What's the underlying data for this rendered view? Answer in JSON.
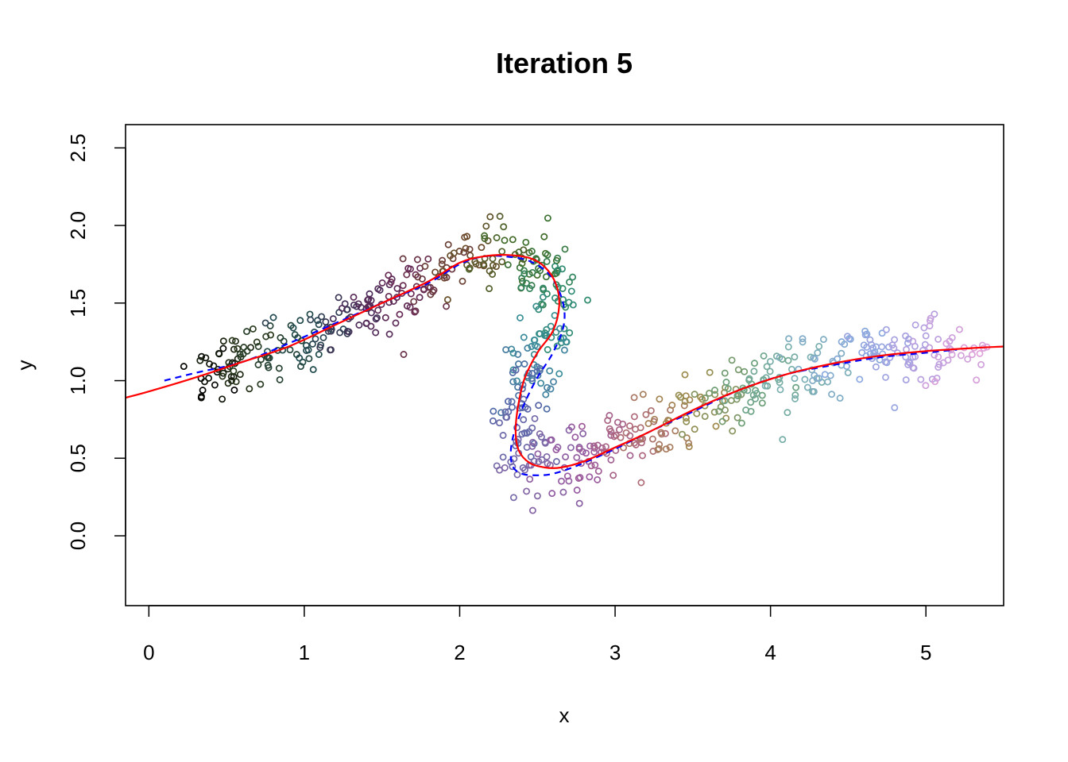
{
  "chart_data": {
    "type": "scatter",
    "title": "Iteration 5",
    "xlabel": "x",
    "ylabel": "y",
    "xlim": [
      -0.15,
      5.5
    ],
    "ylim": [
      -0.45,
      2.65
    ],
    "x_ticks": [
      0,
      1,
      2,
      3,
      4,
      5
    ],
    "y_ticks": [
      0.0,
      0.5,
      1.0,
      1.5,
      2.0,
      2.5
    ],
    "x_tick_labels": [
      "0",
      "1",
      "2",
      "3",
      "4",
      "5"
    ],
    "y_tick_labels": [
      "0.0",
      "0.5",
      "1.0",
      "1.5",
      "2.0",
      "2.5"
    ],
    "grid": false,
    "legend": "none",
    "points_note": "colored open circles along an S-shaped path, color gradient from dark (black/green) at x=0 through green, teal, blue, purple, brown, to light pink at x≈5.3",
    "color_stops": [
      "#000000",
      "#2b3a1c",
      "#1f4b4f",
      "#4b2d5a",
      "#6a2a55",
      "#6b4a2a",
      "#3f6e2a",
      "#2f8a6a",
      "#3a8f9a",
      "#5566a8",
      "#7a6aa8",
      "#9a5aa0",
      "#b06a7a",
      "#a08a4a",
      "#6aa07a",
      "#7ab0b0",
      "#8aa8e0",
      "#b0a0e0",
      "#e0a0d8"
    ],
    "series": [
      {
        "name": "",
        "style": "solid",
        "color": "#ff0000",
        "x": [
          -0.15,
          0.0,
          0.3,
          0.6,
          0.9,
          1.2,
          1.5,
          1.8,
          2.0,
          2.15,
          2.3,
          2.45,
          2.55,
          2.62,
          2.64,
          2.6,
          2.5,
          2.42,
          2.38,
          2.36,
          2.38,
          2.45,
          2.55,
          2.65,
          2.8,
          3.0,
          3.2,
          3.5,
          3.8,
          4.1,
          4.4,
          4.7,
          5.0,
          5.3,
          5.5
        ],
        "y": [
          0.89,
          0.93,
          1.02,
          1.12,
          1.22,
          1.36,
          1.5,
          1.64,
          1.76,
          1.8,
          1.81,
          1.79,
          1.73,
          1.62,
          1.48,
          1.32,
          1.18,
          1.02,
          0.86,
          0.68,
          0.55,
          0.47,
          0.44,
          0.44,
          0.48,
          0.57,
          0.66,
          0.81,
          0.94,
          1.04,
          1.11,
          1.16,
          1.19,
          1.21,
          1.22
        ]
      },
      {
        "name": "",
        "style": "dashed",
        "color": "#0000ff",
        "x": [
          0.1,
          0.3,
          0.6,
          0.9,
          1.2,
          1.5,
          1.8,
          2.0,
          2.15,
          2.3,
          2.45,
          2.58,
          2.66,
          2.67,
          2.6,
          2.5,
          2.42,
          2.36,
          2.33,
          2.34,
          2.4,
          2.5,
          2.6,
          2.75,
          3.0,
          3.2,
          3.5,
          3.8,
          4.1,
          4.4,
          4.7,
          5.0,
          5.2
        ],
        "y": [
          1.0,
          1.05,
          1.12,
          1.24,
          1.37,
          1.5,
          1.63,
          1.75,
          1.8,
          1.8,
          1.77,
          1.68,
          1.52,
          1.36,
          1.18,
          1.02,
          0.86,
          0.7,
          0.56,
          0.45,
          0.4,
          0.39,
          0.4,
          0.45,
          0.56,
          0.66,
          0.8,
          0.94,
          1.04,
          1.1,
          1.15,
          1.18,
          1.2
        ]
      }
    ]
  }
}
